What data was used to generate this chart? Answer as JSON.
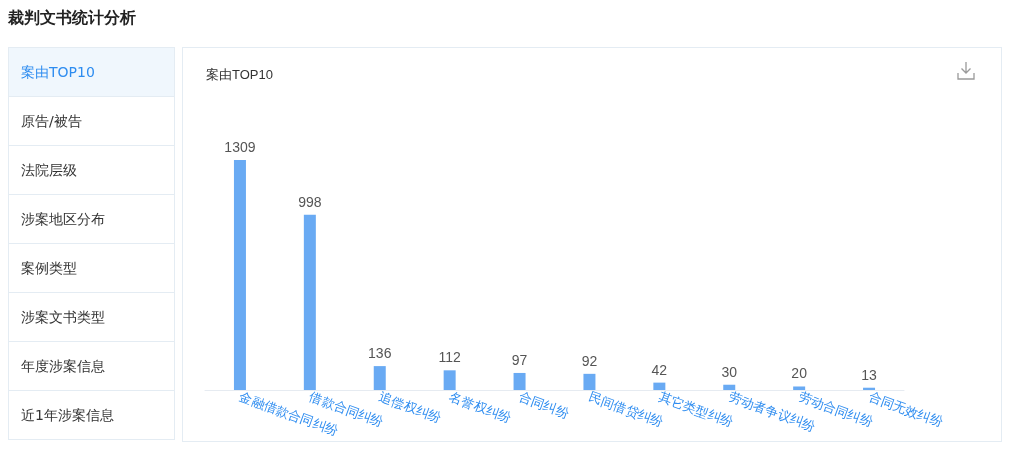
{
  "chart_data": {
    "type": "bar",
    "title": "裁判文书统计分析",
    "subtitle": "案由TOP10",
    "categories": [
      "金融借款合同纠纷",
      "借款合同纠纷",
      "追偿权纠纷",
      "名誉权纠纷",
      "合同纠纷",
      "民间借贷纠纷",
      "其它类型纠纷",
      "劳动者争议纠纷",
      "劳动合同纠纷",
      "合同无效纠纷"
    ],
    "values": [
      1309,
      998,
      136,
      112,
      97,
      92,
      42,
      30,
      20,
      13
    ],
    "color": "#69aaf3",
    "data_labels": true,
    "annotations": [
      "案由TOP10",
      "原告/被告",
      "法院层级",
      "涉案地区分布",
      "案例类型",
      "涉案文书类型",
      "年度涉案信息",
      "近1年涉案信息"
    ]
  }
}
